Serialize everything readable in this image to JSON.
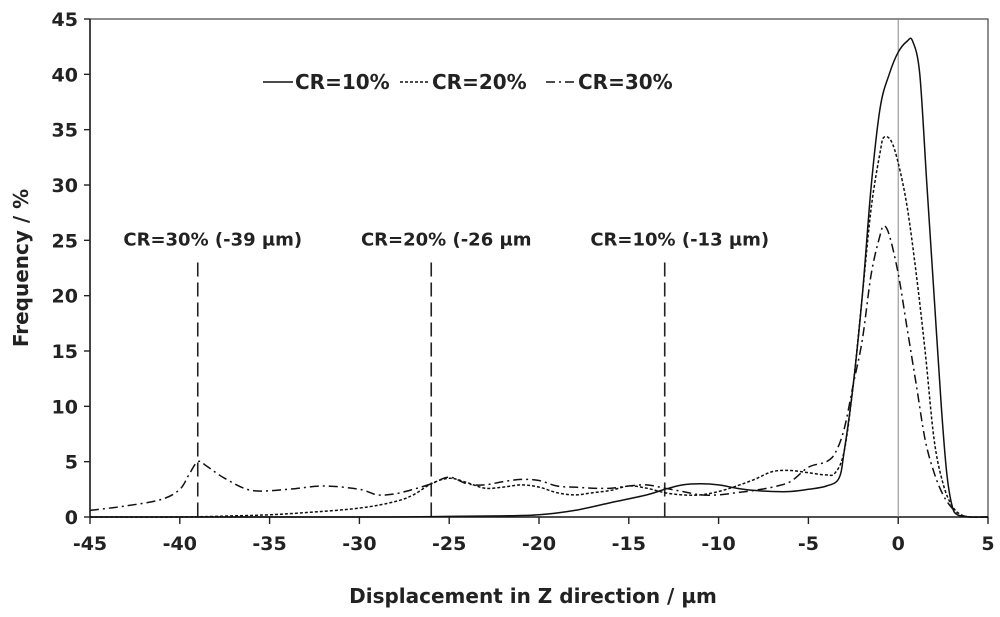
{
  "chart_data": {
    "type": "line",
    "xlabel": "Displacement in Z direction / µm",
    "ylabel": "Frequency / %",
    "xlim": [
      -45,
      5
    ],
    "ylim": [
      0,
      45
    ],
    "xticks": [
      -45,
      -40,
      -35,
      -30,
      -25,
      -20,
      -15,
      -10,
      -5,
      0,
      5
    ],
    "yticks": [
      0,
      5,
      10,
      15,
      20,
      25,
      30,
      35,
      40,
      45
    ],
    "grid": false,
    "legend_position": "top-left",
    "series": [
      {
        "name": "CR=10%",
        "style": "solid",
        "points": [
          [
            -45,
            0
          ],
          [
            -30,
            0
          ],
          [
            -25,
            0.05
          ],
          [
            -22,
            0.1
          ],
          [
            -20,
            0.2
          ],
          [
            -18,
            0.6
          ],
          [
            -16,
            1.3
          ],
          [
            -14,
            2.0
          ],
          [
            -13,
            2.5
          ],
          [
            -12,
            2.9
          ],
          [
            -11,
            3.0
          ],
          [
            -10,
            2.9
          ],
          [
            -9,
            2.6
          ],
          [
            -8,
            2.4
          ],
          [
            -7,
            2.3
          ],
          [
            -6,
            2.3
          ],
          [
            -5,
            2.5
          ],
          [
            -4,
            2.8
          ],
          [
            -3.3,
            3.5
          ],
          [
            -3,
            6
          ],
          [
            -2.5,
            12
          ],
          [
            -2,
            20
          ],
          [
            -1.5,
            30
          ],
          [
            -1,
            37
          ],
          [
            -0.5,
            40
          ],
          [
            0,
            42
          ],
          [
            0.5,
            43
          ],
          [
            0.8,
            43
          ],
          [
            1.2,
            40
          ],
          [
            1.6,
            30
          ],
          [
            2,
            20
          ],
          [
            2.4,
            10
          ],
          [
            2.7,
            4
          ],
          [
            3,
            1
          ],
          [
            3.3,
            0.2
          ],
          [
            4,
            0
          ],
          [
            5,
            0
          ]
        ]
      },
      {
        "name": "CR=20%",
        "style": "dotted",
        "points": [
          [
            -45,
            0
          ],
          [
            -40,
            0
          ],
          [
            -37,
            0.1
          ],
          [
            -35,
            0.2
          ],
          [
            -33,
            0.4
          ],
          [
            -30,
            0.8
          ],
          [
            -28,
            1.4
          ],
          [
            -27,
            2.0
          ],
          [
            -26,
            3.0
          ],
          [
            -25,
            3.5
          ],
          [
            -24,
            3.1
          ],
          [
            -23,
            2.6
          ],
          [
            -22,
            2.7
          ],
          [
            -21,
            2.9
          ],
          [
            -20,
            2.7
          ],
          [
            -19,
            2.2
          ],
          [
            -18,
            2.0
          ],
          [
            -17,
            2.2
          ],
          [
            -16,
            2.4
          ],
          [
            -15,
            2.8
          ],
          [
            -14,
            2.6
          ],
          [
            -13,
            2.2
          ],
          [
            -12,
            2.0
          ],
          [
            -11,
            2.0
          ],
          [
            -10,
            2.3
          ],
          [
            -9,
            2.8
          ],
          [
            -8,
            3.4
          ],
          [
            -7,
            4.1
          ],
          [
            -6,
            4.2
          ],
          [
            -5,
            4.0
          ],
          [
            -4,
            3.8
          ],
          [
            -3.5,
            4.0
          ],
          [
            -3,
            6
          ],
          [
            -2.5,
            12
          ],
          [
            -2,
            20
          ],
          [
            -1.5,
            28
          ],
          [
            -1,
            33
          ],
          [
            -0.8,
            34.3
          ],
          [
            -0.4,
            34
          ],
          [
            0,
            32
          ],
          [
            0.5,
            28
          ],
          [
            1,
            22
          ],
          [
            1.5,
            15
          ],
          [
            2,
            7
          ],
          [
            2.5,
            3
          ],
          [
            3,
            1
          ],
          [
            3.5,
            0.2
          ],
          [
            4,
            0
          ],
          [
            5,
            0
          ]
        ]
      },
      {
        "name": "CR=30%",
        "style": "dashdot",
        "points": [
          [
            -45,
            0.6
          ],
          [
            -43,
            1.0
          ],
          [
            -41,
            1.6
          ],
          [
            -40,
            2.5
          ],
          [
            -39.5,
            3.8
          ],
          [
            -39,
            5.0
          ],
          [
            -38.5,
            4.6
          ],
          [
            -37.5,
            3.5
          ],
          [
            -36,
            2.4
          ],
          [
            -34,
            2.5
          ],
          [
            -32,
            2.8
          ],
          [
            -30,
            2.5
          ],
          [
            -29,
            2.0
          ],
          [
            -28,
            2.1
          ],
          [
            -27,
            2.5
          ],
          [
            -26,
            3.0
          ],
          [
            -25,
            3.6
          ],
          [
            -24,
            3.0
          ],
          [
            -23,
            2.9
          ],
          [
            -22,
            3.2
          ],
          [
            -21,
            3.4
          ],
          [
            -20,
            3.3
          ],
          [
            -19,
            2.8
          ],
          [
            -18,
            2.7
          ],
          [
            -17,
            2.6
          ],
          [
            -16,
            2.6
          ],
          [
            -15,
            2.8
          ],
          [
            -14,
            2.9
          ],
          [
            -13,
            2.6
          ],
          [
            -12,
            2.3
          ],
          [
            -11,
            2.0
          ],
          [
            -10,
            2.0
          ],
          [
            -9,
            2.2
          ],
          [
            -8,
            2.4
          ],
          [
            -7,
            2.7
          ],
          [
            -6,
            3.2
          ],
          [
            -5,
            4.5
          ],
          [
            -4,
            5.0
          ],
          [
            -3.5,
            5.8
          ],
          [
            -3,
            8
          ],
          [
            -2.5,
            12
          ],
          [
            -2,
            16
          ],
          [
            -1.5,
            22
          ],
          [
            -1,
            25.5
          ],
          [
            -0.8,
            26.3
          ],
          [
            -0.5,
            25.5
          ],
          [
            0,
            22
          ],
          [
            0.5,
            17
          ],
          [
            1,
            12
          ],
          [
            1.5,
            7
          ],
          [
            2,
            4
          ],
          [
            2.5,
            2
          ],
          [
            3,
            0.8
          ],
          [
            3.5,
            0.2
          ],
          [
            4,
            0
          ],
          [
            5,
            0
          ]
        ]
      }
    ],
    "vlines": [
      {
        "x": -39,
        "label": "CR=30% (-39 µm)"
      },
      {
        "x": -26,
        "label": "CR=20% (-26 µm"
      },
      {
        "x": -13,
        "label": "CR=10% (-13 µm)"
      }
    ],
    "reference_line_x": 0
  }
}
